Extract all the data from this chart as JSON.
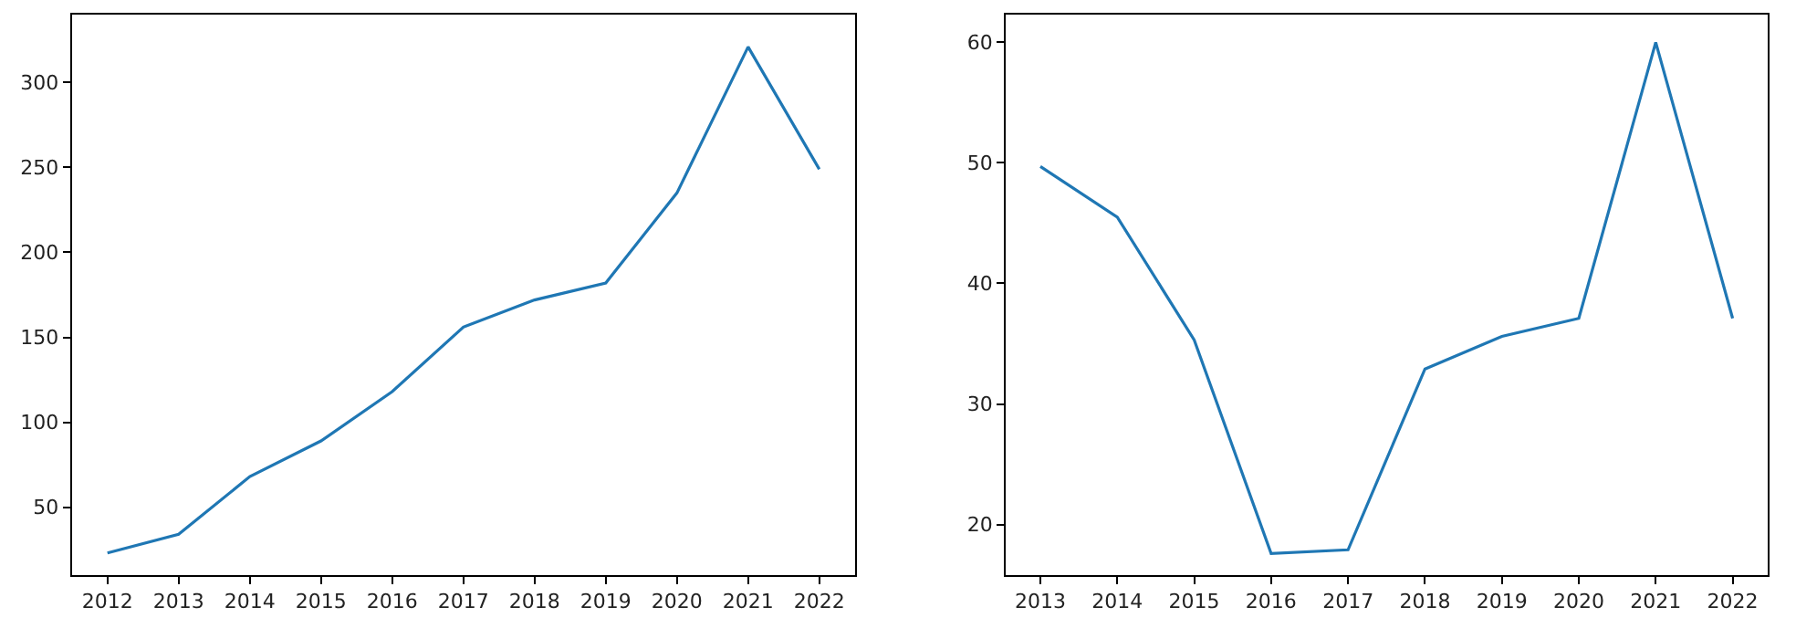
{
  "chart_data": [
    {
      "type": "line",
      "x": [
        2012,
        2013,
        2014,
        2015,
        2016,
        2017,
        2018,
        2019,
        2020,
        2021,
        2022
      ],
      "series": [
        {
          "color": "#1f77b4",
          "values": [
            23,
            34,
            68,
            89,
            118,
            156,
            172,
            182,
            235,
            321,
            249
          ]
        }
      ],
      "xlim": [
        2011.5,
        2022.5
      ],
      "xticks": [
        2012,
        2013,
        2014,
        2015,
        2016,
        2017,
        2018,
        2019,
        2020,
        2021,
        2022
      ],
      "ylim": [
        10,
        340
      ],
      "yticks": [
        50,
        100,
        150,
        200,
        250,
        300
      ]
    },
    {
      "type": "line",
      "x": [
        2013,
        2014,
        2015,
        2016,
        2017,
        2018,
        2019,
        2020,
        2021,
        2022
      ],
      "series": [
        {
          "color": "#1f77b4",
          "values": [
            49.7,
            45.5,
            35.3,
            17.6,
            17.9,
            32.9,
            35.6,
            37.1,
            60,
            37.1
          ]
        }
      ],
      "xlim": [
        2012.55,
        2022.45
      ],
      "xticks": [
        2013,
        2014,
        2015,
        2016,
        2017,
        2018,
        2019,
        2020,
        2021,
        2022
      ],
      "ylim": [
        15.8,
        62.3
      ],
      "yticks": [
        20,
        30,
        40,
        50,
        60
      ]
    }
  ]
}
